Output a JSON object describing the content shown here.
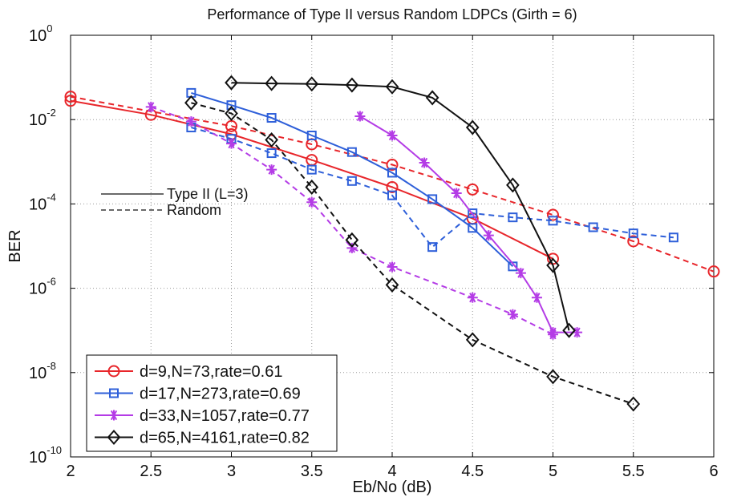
{
  "chart_data": {
    "type": "line",
    "title": "Performance of Type II versus Random LDPCs (Girth = 6)",
    "xlabel": "Eb/No (dB)",
    "ylabel": "BER",
    "xlim": [
      2,
      6
    ],
    "ylim": [
      1e-10,
      1
    ],
    "yscale": "log",
    "grid": true,
    "x_ticks": [
      "2",
      "2.5",
      "3",
      "3.5",
      "4",
      "4.5",
      "5",
      "5.5",
      "6"
    ],
    "y_ticks": [
      {
        "base": "10",
        "exp": "0"
      },
      {
        "base": "10",
        "exp": "-2"
      },
      {
        "base": "10",
        "exp": "-4"
      },
      {
        "base": "10",
        "exp": "-6"
      },
      {
        "base": "10",
        "exp": "-8"
      },
      {
        "base": "10",
        "exp": "-10"
      }
    ],
    "legend_position": "bottom-left",
    "line_style_legend": [
      {
        "label": "Type II (L=3)",
        "dash": "solid"
      },
      {
        "label": "Random",
        "dash": "dashed"
      }
    ],
    "series": [
      {
        "name": "d=9,N=73,rate=0.61 — Type II (L=3)",
        "legend_label": "d=9,N=73,rate=0.61",
        "color": "#e8262b",
        "marker": "circle",
        "dash": "solid",
        "x": [
          2,
          2.5,
          3,
          3.5,
          4,
          4.5,
          5
        ],
        "y": [
          0.028,
          0.013,
          0.0045,
          0.0011,
          0.00025,
          4.5e-05,
          5e-06
        ]
      },
      {
        "name": "d=9,N=73,rate=0.61 — Random",
        "color": "#e8262b",
        "marker": "circle",
        "dash": "dashed",
        "x": [
          2,
          3,
          3.5,
          4,
          4.5,
          5,
          5.5,
          6
        ],
        "y": [
          0.035,
          0.007,
          0.0026,
          0.00085,
          0.00022,
          5.5e-05,
          1.3e-05,
          2.5e-06
        ]
      },
      {
        "name": "d=17,N=273,rate=0.69 — Type II (L=3)",
        "legend_label": "d=17,N=273,rate=0.69",
        "color": "#2e5fd9",
        "marker": "square",
        "dash": "solid",
        "x": [
          2.75,
          3,
          3.25,
          3.5,
          3.75,
          4,
          4.25,
          4.5,
          4.75
        ],
        "y": [
          0.043,
          0.022,
          0.011,
          0.0042,
          0.0017,
          0.00055,
          0.00013,
          2.7e-05,
          3.3e-06
        ]
      },
      {
        "name": "d=17,N=273,rate=0.69 — Random",
        "color": "#2e5fd9",
        "marker": "square",
        "dash": "dashed",
        "x": [
          2.75,
          3,
          3.25,
          3.5,
          3.75,
          4,
          4.25,
          4.5,
          4.75,
          5,
          5.25,
          5.5,
          5.75
        ],
        "y": [
          0.0065,
          0.0035,
          0.0016,
          0.00065,
          0.00035,
          0.00016,
          9.5e-06,
          6e-05,
          4.8e-05,
          4e-05,
          2.8e-05,
          2e-05,
          1.6e-05
        ]
      },
      {
        "name": "d=33,N=1057,rate=0.77 — Type II (L=3)",
        "legend_label": "d=33,N=1057,rate=0.77",
        "color": "#b43ce6",
        "marker": "asterisk",
        "dash": "solid",
        "x": [
          3.8,
          4,
          4.2,
          4.4,
          4.6,
          4.8,
          4.9,
          5,
          5.15
        ],
        "y": [
          0.012,
          0.0042,
          0.00095,
          0.00018,
          1.8e-05,
          2.3e-06,
          6e-07,
          9e-08,
          9e-08
        ]
      },
      {
        "name": "d=33,N=1057,rate=0.77 — Random",
        "color": "#b43ce6",
        "marker": "asterisk",
        "dash": "dashed",
        "x": [
          2.5,
          2.75,
          3,
          3.25,
          3.5,
          3.75,
          4,
          4.5,
          4.75,
          5
        ],
        "y": [
          0.02,
          0.009,
          0.0027,
          0.00065,
          0.00011,
          9e-06,
          3.2e-06,
          6e-07,
          2.4e-07,
          8e-08
        ]
      },
      {
        "name": "d=65,N=4161,rate=0.82 — Type II (L=3)",
        "legend_label": "d=65,N=4161,rate=0.82",
        "color": "#111111",
        "marker": "diamond",
        "dash": "solid",
        "x": [
          3,
          3.25,
          3.5,
          3.75,
          4,
          4.25,
          4.5,
          4.75,
          5,
          5.1
        ],
        "y": [
          0.075,
          0.072,
          0.07,
          0.066,
          0.06,
          0.033,
          0.0065,
          0.00028,
          3.5e-06,
          1e-07
        ]
      },
      {
        "name": "d=65,N=4161,rate=0.82 — Random",
        "color": "#111111",
        "marker": "diamond",
        "dash": "dashed",
        "x": [
          2.75,
          3,
          3.25,
          3.5,
          3.75,
          4,
          4.5,
          5,
          5.5
        ],
        "y": [
          0.025,
          0.014,
          0.0033,
          0.00025,
          1.4e-05,
          1.2e-06,
          6e-08,
          8e-09,
          1.8e-09
        ]
      }
    ]
  }
}
